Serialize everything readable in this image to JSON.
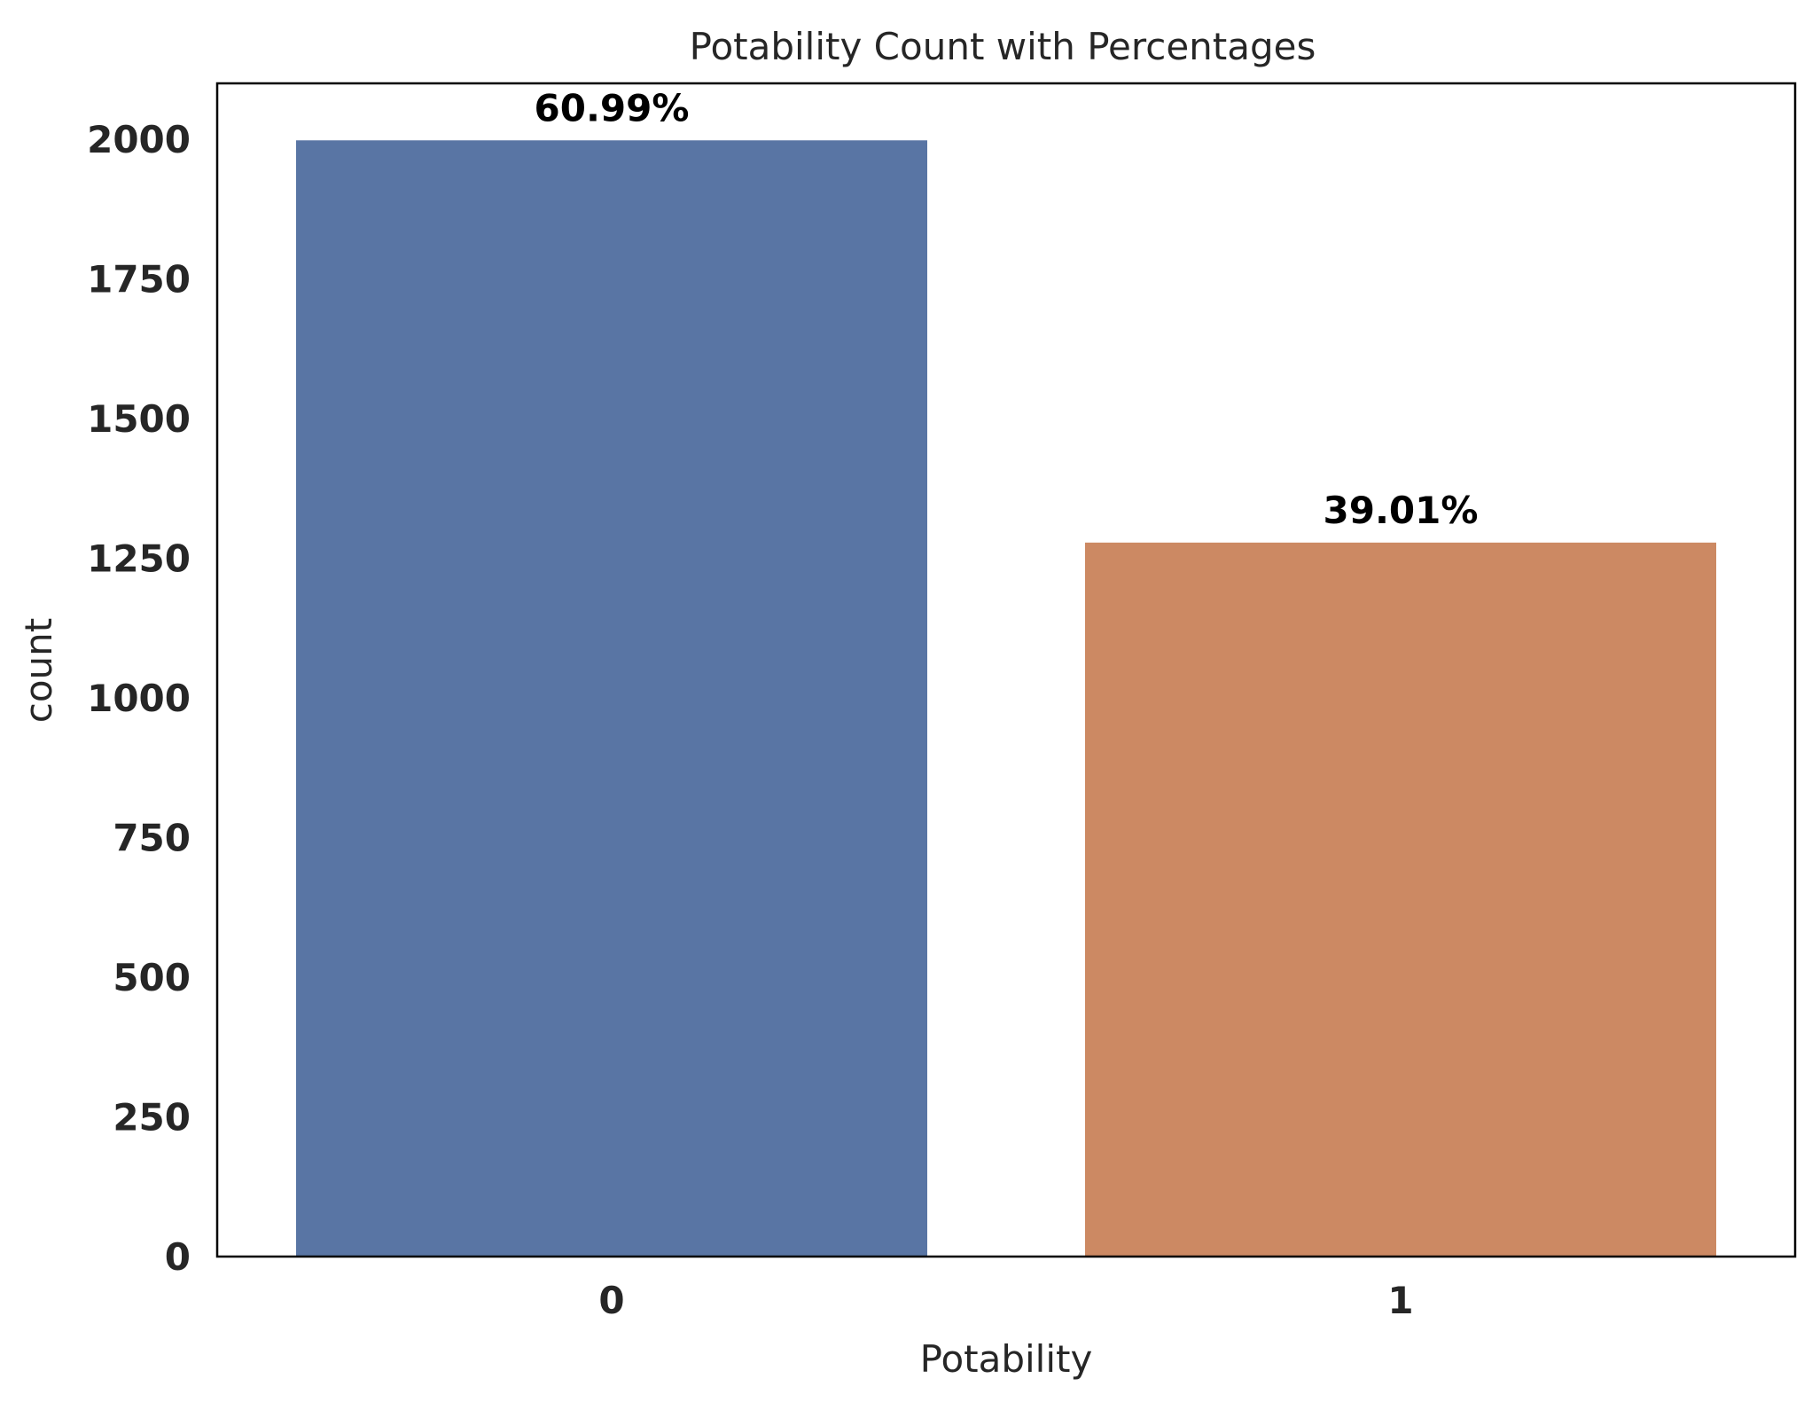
{
  "chart_data": {
    "type": "bar",
    "title": "Potability Count with Percentages",
    "xlabel": "Potability",
    "ylabel": "count",
    "categories": [
      "0",
      "1"
    ],
    "values": [
      1998,
      1278
    ],
    "data_labels": [
      "60.99%",
      "39.01%"
    ],
    "colors": [
      "#5975a4",
      "#cc8963"
    ],
    "ylim": [
      0,
      2100
    ],
    "yticks": [
      0,
      250,
      500,
      750,
      1000,
      1250,
      1500,
      1750,
      2000
    ],
    "grid": false,
    "legend": "none"
  }
}
